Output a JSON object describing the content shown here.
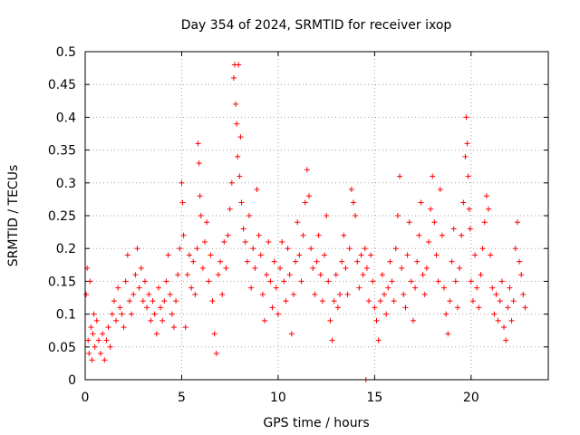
{
  "chart_data": {
    "type": "scatter",
    "title": "Day 354 of 2024, SRMTID for receiver ixop",
    "xlabel": "GPS time / hours",
    "ylabel": "SRMTID / TECUs",
    "xlim": [
      0,
      24
    ],
    "ylim": [
      0,
      0.5
    ],
    "xticks": [
      0,
      5,
      10,
      15,
      20
    ],
    "xtick_labels": [
      "0",
      "5",
      "10",
      "15",
      "20"
    ],
    "yticks": [
      0,
      0.05,
      0.1,
      0.15,
      0.2,
      0.25,
      0.3,
      0.35,
      0.4,
      0.45,
      0.5
    ],
    "ytick_labels": [
      "0",
      "0.05",
      "0.1",
      "0.15",
      "0.2",
      "0.25",
      "0.3",
      "0.35",
      "0.4",
      "0.45",
      "0.5"
    ],
    "grid": true,
    "marker": "+",
    "color": "#ff0000",
    "series": [
      {
        "name": "SRMTID",
        "points": [
          [
            0.05,
            0.13
          ],
          [
            0.1,
            0.17
          ],
          [
            0.15,
            0.06
          ],
          [
            0.2,
            0.04
          ],
          [
            0.25,
            0.15
          ],
          [
            0.3,
            0.08
          ],
          [
            0.35,
            0.03
          ],
          [
            0.4,
            0.07
          ],
          [
            0.45,
            0.1
          ],
          [
            0.5,
            0.05
          ],
          [
            0.6,
            0.09
          ],
          [
            0.7,
            0.06
          ],
          [
            0.8,
            0.04
          ],
          [
            0.9,
            0.07
          ],
          [
            1.0,
            0.03
          ],
          [
            1.1,
            0.06
          ],
          [
            1.2,
            0.08
          ],
          [
            1.3,
            0.05
          ],
          [
            1.4,
            0.1
          ],
          [
            1.5,
            0.12
          ],
          [
            1.6,
            0.09
          ],
          [
            1.7,
            0.14
          ],
          [
            1.8,
            0.11
          ],
          [
            1.9,
            0.1
          ],
          [
            2.0,
            0.08
          ],
          [
            2.1,
            0.15
          ],
          [
            2.2,
            0.19
          ],
          [
            2.3,
            0.12
          ],
          [
            2.4,
            0.1
          ],
          [
            2.5,
            0.13
          ],
          [
            2.6,
            0.16
          ],
          [
            2.7,
            0.2
          ],
          [
            2.8,
            0.14
          ],
          [
            2.9,
            0.17
          ],
          [
            3.0,
            0.12
          ],
          [
            3.1,
            0.15
          ],
          [
            3.2,
            0.11
          ],
          [
            3.3,
            0.13
          ],
          [
            3.4,
            0.09
          ],
          [
            3.5,
            0.12
          ],
          [
            3.6,
            0.1
          ],
          [
            3.7,
            0.07
          ],
          [
            3.8,
            0.14
          ],
          [
            3.9,
            0.11
          ],
          [
            4.0,
            0.09
          ],
          [
            4.1,
            0.12
          ],
          [
            4.2,
            0.15
          ],
          [
            4.3,
            0.19
          ],
          [
            4.4,
            0.13
          ],
          [
            4.5,
            0.1
          ],
          [
            4.6,
            0.08
          ],
          [
            4.7,
            0.12
          ],
          [
            4.8,
            0.16
          ],
          [
            4.9,
            0.2
          ],
          [
            5.0,
            0.3
          ],
          [
            5.05,
            0.27
          ],
          [
            5.1,
            0.22
          ],
          [
            5.2,
            0.08
          ],
          [
            5.3,
            0.16
          ],
          [
            5.4,
            0.19
          ],
          [
            5.5,
            0.14
          ],
          [
            5.6,
            0.18
          ],
          [
            5.7,
            0.13
          ],
          [
            5.8,
            0.2
          ],
          [
            5.85,
            0.36
          ],
          [
            5.9,
            0.33
          ],
          [
            5.95,
            0.28
          ],
          [
            6.0,
            0.25
          ],
          [
            6.1,
            0.17
          ],
          [
            6.2,
            0.21
          ],
          [
            6.3,
            0.24
          ],
          [
            6.4,
            0.15
          ],
          [
            6.5,
            0.19
          ],
          [
            6.6,
            0.12
          ],
          [
            6.7,
            0.07
          ],
          [
            6.8,
            0.04
          ],
          [
            6.9,
            0.16
          ],
          [
            7.0,
            0.18
          ],
          [
            7.1,
            0.13
          ],
          [
            7.2,
            0.21
          ],
          [
            7.3,
            0.17
          ],
          [
            7.4,
            0.22
          ],
          [
            7.5,
            0.26
          ],
          [
            7.6,
            0.3
          ],
          [
            7.7,
            0.46
          ],
          [
            7.75,
            0.48
          ],
          [
            7.8,
            0.42
          ],
          [
            7.85,
            0.39
          ],
          [
            7.9,
            0.34
          ],
          [
            7.95,
            0.48
          ],
          [
            8.0,
            0.31
          ],
          [
            8.05,
            0.37
          ],
          [
            8.1,
            0.27
          ],
          [
            8.2,
            0.23
          ],
          [
            8.3,
            0.21
          ],
          [
            8.4,
            0.18
          ],
          [
            8.5,
            0.25
          ],
          [
            8.6,
            0.14
          ],
          [
            8.7,
            0.2
          ],
          [
            8.8,
            0.17
          ],
          [
            8.9,
            0.29
          ],
          [
            9.0,
            0.22
          ],
          [
            9.1,
            0.19
          ],
          [
            9.2,
            0.13
          ],
          [
            9.3,
            0.09
          ],
          [
            9.4,
            0.16
          ],
          [
            9.5,
            0.21
          ],
          [
            9.6,
            0.15
          ],
          [
            9.7,
            0.11
          ],
          [
            9.8,
            0.18
          ],
          [
            9.9,
            0.14
          ],
          [
            10.0,
            0.1
          ],
          [
            10.1,
            0.17
          ],
          [
            10.2,
            0.21
          ],
          [
            10.3,
            0.15
          ],
          [
            10.4,
            0.12
          ],
          [
            10.5,
            0.2
          ],
          [
            10.6,
            0.16
          ],
          [
            10.7,
            0.07
          ],
          [
            10.8,
            0.13
          ],
          [
            10.9,
            0.18
          ],
          [
            11.0,
            0.24
          ],
          [
            11.1,
            0.19
          ],
          [
            11.2,
            0.15
          ],
          [
            11.3,
            0.22
          ],
          [
            11.4,
            0.27
          ],
          [
            11.5,
            0.32
          ],
          [
            11.6,
            0.28
          ],
          [
            11.7,
            0.2
          ],
          [
            11.8,
            0.17
          ],
          [
            11.9,
            0.13
          ],
          [
            12.0,
            0.18
          ],
          [
            12.1,
            0.22
          ],
          [
            12.2,
            0.16
          ],
          [
            12.3,
            0.12
          ],
          [
            12.4,
            0.19
          ],
          [
            12.5,
            0.25
          ],
          [
            12.6,
            0.15
          ],
          [
            12.7,
            0.09
          ],
          [
            12.8,
            0.06
          ],
          [
            12.9,
            0.12
          ],
          [
            13.0,
            0.16
          ],
          [
            13.1,
            0.11
          ],
          [
            13.2,
            0.13
          ],
          [
            13.3,
            0.18
          ],
          [
            13.4,
            0.22
          ],
          [
            13.5,
            0.17
          ],
          [
            13.6,
            0.13
          ],
          [
            13.7,
            0.2
          ],
          [
            13.8,
            0.29
          ],
          [
            13.9,
            0.27
          ],
          [
            14.0,
            0.25
          ],
          [
            14.1,
            0.18
          ],
          [
            14.2,
            0.14
          ],
          [
            14.3,
            0.19
          ],
          [
            14.4,
            0.16
          ],
          [
            14.5,
            0.2
          ],
          [
            14.55,
            0.0
          ],
          [
            14.6,
            0.17
          ],
          [
            14.7,
            0.12
          ],
          [
            14.8,
            0.19
          ],
          [
            14.9,
            0.15
          ],
          [
            15.0,
            0.11
          ],
          [
            15.1,
            0.09
          ],
          [
            15.2,
            0.06
          ],
          [
            15.3,
            0.12
          ],
          [
            15.4,
            0.16
          ],
          [
            15.5,
            0.13
          ],
          [
            15.6,
            0.1
          ],
          [
            15.7,
            0.14
          ],
          [
            15.8,
            0.18
          ],
          [
            15.9,
            0.15
          ],
          [
            16.0,
            0.12
          ],
          [
            16.1,
            0.2
          ],
          [
            16.2,
            0.25
          ],
          [
            16.3,
            0.31
          ],
          [
            16.4,
            0.17
          ],
          [
            16.5,
            0.13
          ],
          [
            16.6,
            0.11
          ],
          [
            16.7,
            0.19
          ],
          [
            16.8,
            0.24
          ],
          [
            16.9,
            0.15
          ],
          [
            17.0,
            0.09
          ],
          [
            17.1,
            0.14
          ],
          [
            17.2,
            0.18
          ],
          [
            17.3,
            0.22
          ],
          [
            17.4,
            0.27
          ],
          [
            17.5,
            0.16
          ],
          [
            17.6,
            0.13
          ],
          [
            17.7,
            0.17
          ],
          [
            17.8,
            0.21
          ],
          [
            17.9,
            0.26
          ],
          [
            18.0,
            0.31
          ],
          [
            18.1,
            0.24
          ],
          [
            18.2,
            0.19
          ],
          [
            18.3,
            0.15
          ],
          [
            18.4,
            0.29
          ],
          [
            18.5,
            0.22
          ],
          [
            18.6,
            0.14
          ],
          [
            18.7,
            0.1
          ],
          [
            18.8,
            0.07
          ],
          [
            18.9,
            0.12
          ],
          [
            19.0,
            0.18
          ],
          [
            19.1,
            0.23
          ],
          [
            19.2,
            0.15
          ],
          [
            19.3,
            0.11
          ],
          [
            19.4,
            0.17
          ],
          [
            19.5,
            0.22
          ],
          [
            19.6,
            0.27
          ],
          [
            19.7,
            0.34
          ],
          [
            19.75,
            0.4
          ],
          [
            19.8,
            0.36
          ],
          [
            19.85,
            0.31
          ],
          [
            19.9,
            0.26
          ],
          [
            19.95,
            0.23
          ],
          [
            20.0,
            0.15
          ],
          [
            20.1,
            0.12
          ],
          [
            20.2,
            0.19
          ],
          [
            20.3,
            0.14
          ],
          [
            20.4,
            0.11
          ],
          [
            20.5,
            0.16
          ],
          [
            20.6,
            0.2
          ],
          [
            20.7,
            0.24
          ],
          [
            20.8,
            0.28
          ],
          [
            20.9,
            0.26
          ],
          [
            21.0,
            0.19
          ],
          [
            21.1,
            0.14
          ],
          [
            21.2,
            0.1
          ],
          [
            21.3,
            0.13
          ],
          [
            21.4,
            0.09
          ],
          [
            21.5,
            0.12
          ],
          [
            21.6,
            0.15
          ],
          [
            21.7,
            0.08
          ],
          [
            21.8,
            0.06
          ],
          [
            21.9,
            0.11
          ],
          [
            22.0,
            0.14
          ],
          [
            22.1,
            0.09
          ],
          [
            22.2,
            0.12
          ],
          [
            22.3,
            0.2
          ],
          [
            22.4,
            0.24
          ],
          [
            22.5,
            0.18
          ],
          [
            22.6,
            0.16
          ],
          [
            22.7,
            0.13
          ],
          [
            22.8,
            0.11
          ]
        ]
      }
    ]
  }
}
